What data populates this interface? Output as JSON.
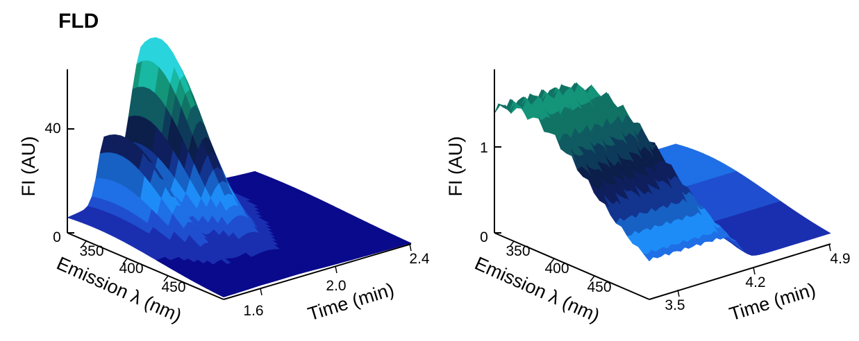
{
  "figure_title": "FLD",
  "colors": {
    "band_palette": [
      "#0a0a8c",
      "#1a2fb0",
      "#1f4fcf",
      "#1f6fe6",
      "#1e8cf7",
      "#1761c4",
      "#13358f",
      "#0f1f5e",
      "#0c1e4a",
      "#0e3a5a",
      "#105a62",
      "#117364",
      "#14957a",
      "#18b8a3",
      "#2ad4dc"
    ],
    "axis": "#000000"
  },
  "chart_data": [
    {
      "type": "surface3d",
      "panel": "left",
      "zlabel": "FI (AU)",
      "xlabel": "Emission λ (nm)",
      "ylabel": "Time (min)",
      "x_ticks": [
        "350",
        "400",
        "450"
      ],
      "y_ticks": [
        "1.6",
        "2.0",
        "2.4"
      ],
      "z_ticks": [
        "0",
        "40"
      ],
      "time_range": [
        1.4,
        2.5
      ],
      "wavelength_range": [
        330,
        500
      ],
      "z_range": [
        0,
        60
      ],
      "peaks": [
        {
          "time_min": 1.62,
          "emission_nm": 350,
          "fi": 26
        },
        {
          "time_min": 1.85,
          "emission_nm": 345,
          "fi": 58
        }
      ],
      "baseline_fi": 8
    },
    {
      "type": "surface3d",
      "panel": "right",
      "zlabel": "FI (AU)",
      "xlabel": "Emission λ (nm)",
      "ylabel": "Time (min)",
      "x_ticks": [
        "350",
        "400",
        "450"
      ],
      "y_ticks": [
        "3.5",
        "4.2",
        "4.9"
      ],
      "z_ticks": [
        "0",
        "1"
      ],
      "time_range": [
        3.0,
        5.0
      ],
      "wavelength_range": [
        330,
        500
      ],
      "z_range": [
        0,
        1.6
      ],
      "plateau_fi": 1.3,
      "plateau_end_time_min": 4.0,
      "late_fi": 0.35
    }
  ]
}
